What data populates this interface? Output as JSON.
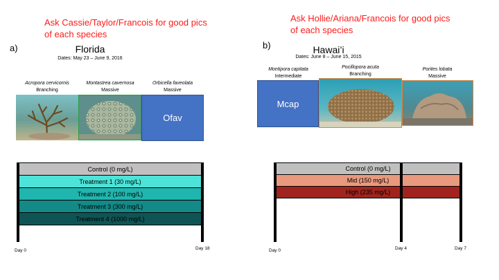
{
  "notes": {
    "left": [
      "Ask Cassie/Taylor/Francois for good pics",
      "of each species"
    ],
    "right": [
      "Ask Hollie/Ariana/Francois for good pics",
      "of each species"
    ]
  },
  "florida": {
    "letter": "a)",
    "title": "Florida",
    "dates": "Dates: May 23 – June 9, 2016",
    "species": [
      {
        "name": "Acropora cervicornis",
        "form": "Branching"
      },
      {
        "name": "Montastrea cavernosa",
        "form": "Massive"
      },
      {
        "name": "Orbicella faveolata",
        "form": "Massive"
      }
    ],
    "placeholder": "Ofav",
    "bars": [
      {
        "label": "Control (0 mg/L)",
        "color": "#c0c0c0"
      },
      {
        "label": "Treatment 1 (30 mg/L)",
        "color": "#4de3d9"
      },
      {
        "label": "Treatment 2 (100 mg/L)",
        "color": "#20b5ae"
      },
      {
        "label": "Treatment 3 (300 mg/L)",
        "color": "#138a87"
      },
      {
        "label": "Treatment 4 (1000 mg/L)",
        "color": "#0f5454"
      }
    ],
    "days": [
      "Day 0",
      "Day 18"
    ]
  },
  "hawaii": {
    "letter": "b)",
    "title": "Hawai’i",
    "dates": "Dates: June 8 – June 15, 2015",
    "species": [
      {
        "name": "Montipora capitata",
        "form": "Intermediate"
      },
      {
        "name": "Pocillopora acuta",
        "form": "Branching"
      },
      {
        "name": "Porites lobata",
        "form": "Massive"
      }
    ],
    "placeholder": "Mcap",
    "bars": [
      {
        "label": "Control (0 mg/L)",
        "color": "#c0c0c0"
      },
      {
        "label": "Mid (150 mg/L)",
        "color": "#e99a7e"
      },
      {
        "label": "High (235 mg/L)",
        "color": "#a0241d"
      }
    ],
    "days": [
      "Day 0",
      "Day 4",
      "Day 7"
    ]
  }
}
